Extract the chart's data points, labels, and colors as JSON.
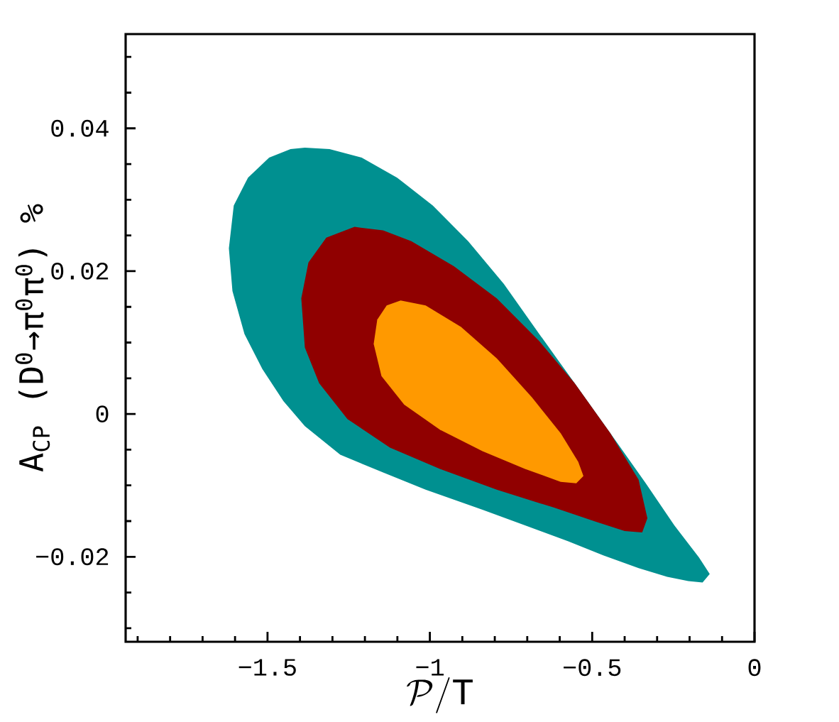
{
  "chart_data": {
    "type": "area",
    "xlabel": "\\mathcal{P}/\\mathrm{T}",
    "ylabel": "A$_{CP}$ (D$^{0}$→π$^{0}$π$^{0}$) %",
    "xlim": [
      -1.937,
      0
    ],
    "ylim": [
      -0.0319,
      0.0532
    ],
    "xticks": [
      {
        "value": -1.9,
        "label": null
      },
      {
        "value": -1.8,
        "label": null
      },
      {
        "value": -1.7,
        "label": null
      },
      {
        "value": -1.6,
        "label": null
      },
      {
        "value": -1.5,
        "label": "−1.5"
      },
      {
        "value": -1.4,
        "label": null
      },
      {
        "value": -1.3,
        "label": null
      },
      {
        "value": -1.2,
        "label": null
      },
      {
        "value": -1.1,
        "label": null
      },
      {
        "value": -1,
        "label": "−1"
      },
      {
        "value": -0.9,
        "label": null
      },
      {
        "value": -0.8,
        "label": null
      },
      {
        "value": -0.7,
        "label": null
      },
      {
        "value": -0.6,
        "label": null
      },
      {
        "value": -0.5,
        "label": "−0.5"
      },
      {
        "value": -0.4,
        "label": null
      },
      {
        "value": -0.3,
        "label": null
      },
      {
        "value": -0.2,
        "label": null
      },
      {
        "value": -0.1,
        "label": null
      },
      0
    ],
    "yticks": [
      {
        "value": -0.03,
        "label": null
      },
      {
        "value": -0.025,
        "label": null
      },
      {
        "value": -0.02,
        "label": "−0.02"
      },
      {
        "value": -0.015,
        "label": null
      },
      {
        "value": -0.01,
        "label": null
      },
      {
        "value": -0.005,
        "label": null
      },
      0,
      {
        "value": 0.005,
        "label": null
      },
      {
        "value": 0.01,
        "label": null
      },
      {
        "value": 0.015,
        "label": null
      },
      {
        "value": 0.02,
        "label": "0.02"
      },
      {
        "value": 0.025,
        "label": null
      },
      {
        "value": 0.03,
        "label": null
      },
      {
        "value": 0.035,
        "label": null
      },
      {
        "value": 0.04,
        "label": "0.04"
      },
      {
        "value": 0.045,
        "label": null
      },
      {
        "value": 0.05,
        "label": null
      }
    ],
    "series": [
      {
        "color": "#009090",
        "x": [
          -1.385,
          -1.309,
          -1.21,
          -1.101,
          -0.991,
          -0.882,
          -0.772,
          -0.663,
          -0.554,
          -0.444,
          -0.335,
          -0.247,
          -0.171,
          -0.138,
          -0.16,
          -0.204,
          -0.269,
          -0.357,
          -0.466,
          -0.575,
          -0.707,
          -0.838,
          -1.013,
          -1.144,
          -1.276,
          -1.385,
          -1.451,
          -1.516,
          -1.571,
          -1.608,
          -1.619,
          -1.604,
          -1.56,
          -1.495,
          -1.429
        ],
        "values": [
          0.0373,
          0.0371,
          0.0359,
          0.0331,
          0.0292,
          0.0242,
          0.0182,
          0.0112,
          0.0043,
          -0.0027,
          -0.0097,
          -0.0156,
          -0.0201,
          -0.0224,
          -0.0236,
          -0.0234,
          -0.0228,
          -0.0216,
          -0.0198,
          -0.0178,
          -0.0156,
          -0.0134,
          -0.0106,
          -0.0082,
          -0.0057,
          -0.0017,
          0.0018,
          0.0063,
          0.0112,
          0.0172,
          0.0232,
          0.0292,
          0.0331,
          0.0359,
          0.0371
        ]
      },
      {
        "color": "#900000",
        "x": [
          -1.232,
          -1.144,
          -1.057,
          -0.926,
          -0.794,
          -0.663,
          -0.554,
          -0.444,
          -0.357,
          -0.33,
          -0.346,
          -0.4,
          -0.488,
          -0.619,
          -0.794,
          -0.969,
          -1.123,
          -1.254,
          -1.341,
          -1.385,
          -1.396,
          -1.374,
          -1.319
        ],
        "values": [
          0.0262,
          0.0257,
          0.0242,
          0.0207,
          0.0162,
          0.0102,
          0.0043,
          -0.0027,
          -0.0092,
          -0.0146,
          -0.0166,
          -0.0164,
          -0.0151,
          -0.0131,
          -0.0106,
          -0.0077,
          -0.0047,
          -0.0007,
          0.0043,
          0.0093,
          0.0162,
          0.0212,
          0.0247
        ]
      },
      {
        "color": "#ff9900",
        "x": [
          -1.09,
          -1.013,
          -0.904,
          -0.794,
          -0.685,
          -0.597,
          -0.543,
          -0.527,
          -0.549,
          -0.597,
          -0.707,
          -0.838,
          -0.969,
          -1.079,
          -1.149,
          -1.173,
          -1.162,
          -1.133
        ],
        "values": [
          0.0159,
          0.0152,
          0.0122,
          0.0078,
          0.0023,
          -0.0027,
          -0.0067,
          -0.0087,
          -0.0097,
          -0.0095,
          -0.0077,
          -0.0052,
          -0.0022,
          0.0013,
          0.0053,
          0.0098,
          0.0132,
          0.0152
        ]
      }
    ]
  }
}
